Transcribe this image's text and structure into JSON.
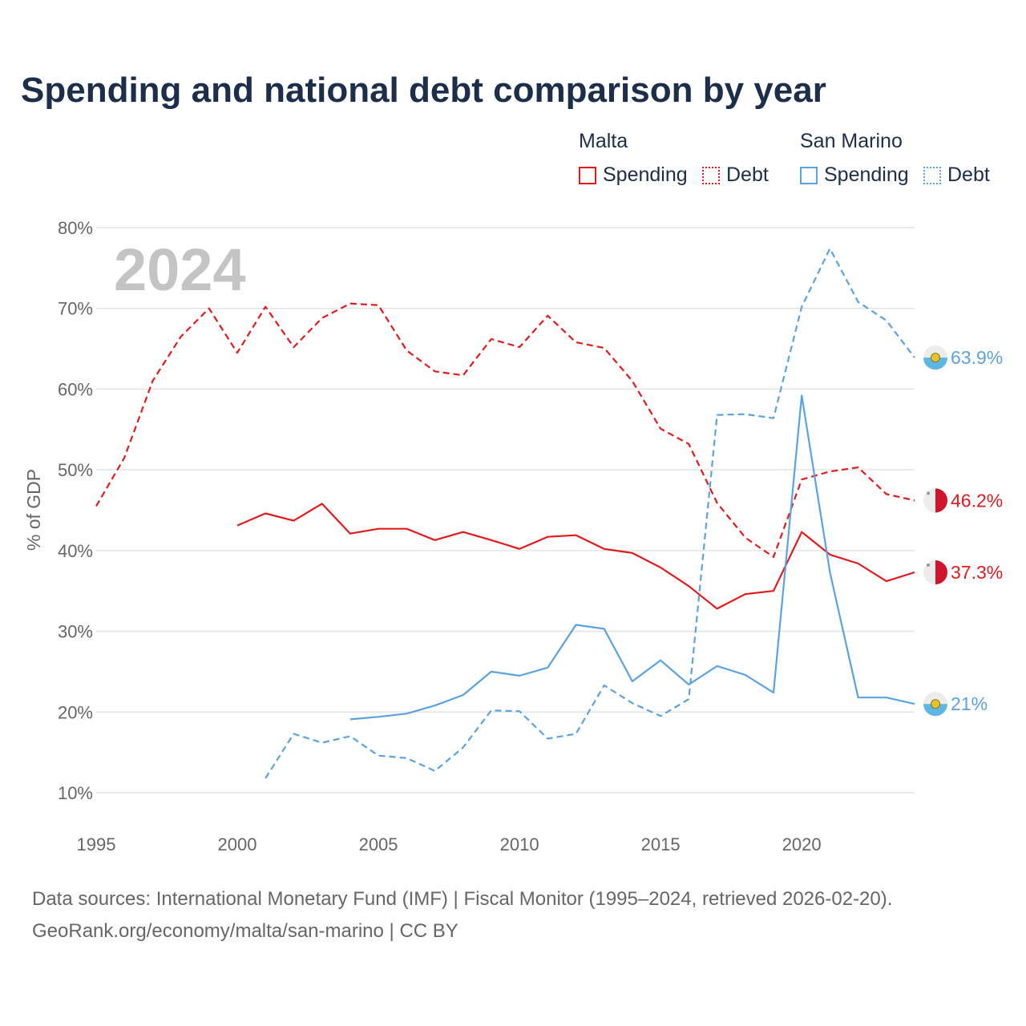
{
  "title": "Spending and national debt comparison by year",
  "legend": {
    "malta_title": "Malta",
    "san_marino_title": "San Marino",
    "spending_label": "Spending",
    "debt_label": "Debt"
  },
  "year_watermark": "2024",
  "footer": {
    "line1": "Data sources: International Monetary Fund (IMF) | Fiscal Monitor (1995–2024, retrieved 2026-02-20).",
    "line2": "GeoRank.org/economy/malta/san-marino | CC BY"
  },
  "colors": {
    "malta": "#e31a1c",
    "san_marino": "#5ba3e0"
  },
  "chart_data": {
    "type": "line",
    "ylabel": "% of GDP",
    "xlabel": "",
    "xlim": [
      1995,
      2024
    ],
    "ylim": [
      10,
      80
    ],
    "x_ticks": [
      1995,
      2000,
      2005,
      2010,
      2015,
      2020
    ],
    "y_ticks": [
      10,
      20,
      30,
      40,
      50,
      60,
      70,
      80
    ],
    "y_tick_labels": [
      "10%",
      "20%",
      "30%",
      "40%",
      "50%",
      "60%",
      "70%",
      "80%"
    ],
    "series": [
      {
        "name": "Malta Debt",
        "country": "Malta",
        "style": "dashed",
        "color": "#e31a1c",
        "x": [
          1995,
          1996,
          1997,
          1998,
          1999,
          2000,
          2001,
          2002,
          2003,
          2004,
          2005,
          2006,
          2007,
          2008,
          2009,
          2010,
          2011,
          2012,
          2013,
          2014,
          2015,
          2016,
          2017,
          2018,
          2019,
          2020,
          2021,
          2022,
          2023,
          2024
        ],
        "values": [
          45.5,
          51.5,
          61,
          66.5,
          70,
          64.5,
          70.2,
          65.2,
          68.8,
          70.6,
          70.4,
          64.8,
          62.2,
          61.7,
          66.2,
          65.2,
          69.1,
          65.8,
          65.1,
          61,
          55.1,
          53.2,
          45.9,
          41.6,
          39.2,
          48.8,
          49.8,
          50.3,
          47,
          46.2
        ],
        "end_label": "46.2%"
      },
      {
        "name": "Malta Spending",
        "country": "Malta",
        "style": "solid",
        "color": "#e31a1c",
        "x": [
          2000,
          2001,
          2002,
          2003,
          2004,
          2005,
          2006,
          2007,
          2008,
          2009,
          2010,
          2011,
          2012,
          2013,
          2014,
          2015,
          2016,
          2017,
          2018,
          2019,
          2020,
          2021,
          2022,
          2023,
          2024
        ],
        "values": [
          43.1,
          44.6,
          43.7,
          45.8,
          42.1,
          42.7,
          42.7,
          41.3,
          42.3,
          41.3,
          40.2,
          41.7,
          41.9,
          40.2,
          39.7,
          37.9,
          35.6,
          32.8,
          34.6,
          35,
          42.3,
          39.5,
          38.4,
          36.2,
          37.3
        ],
        "end_label": "37.3%"
      },
      {
        "name": "San Marino Debt",
        "country": "San Marino",
        "style": "dashed",
        "color": "#5ba3e0",
        "x": [
          2001,
          2002,
          2003,
          2004,
          2005,
          2006,
          2007,
          2008,
          2009,
          2010,
          2011,
          2012,
          2013,
          2014,
          2015,
          2016,
          2017,
          2018,
          2019,
          2020,
          2021,
          2022,
          2023,
          2024
        ],
        "values": [
          11.8,
          17.3,
          16.2,
          17,
          14.6,
          14.3,
          12.7,
          15.6,
          20.2,
          20.1,
          16.7,
          17.3,
          23.3,
          21.1,
          19.5,
          21.6,
          56.8,
          56.9,
          56.4,
          70.2,
          77.4,
          70.8,
          68.5,
          63.9
        ],
        "end_label": "63.9%"
      },
      {
        "name": "San Marino Spending",
        "country": "San Marino",
        "style": "solid",
        "color": "#5ba3e0",
        "x": [
          2004,
          2005,
          2006,
          2007,
          2008,
          2009,
          2010,
          2011,
          2012,
          2013,
          2014,
          2015,
          2016,
          2017,
          2018,
          2019,
          2020,
          2021,
          2022,
          2023,
          2024
        ],
        "values": [
          19.1,
          19.4,
          19.8,
          20.8,
          22.1,
          25,
          24.5,
          25.5,
          30.8,
          30.3,
          23.8,
          26.4,
          23.4,
          25.7,
          24.6,
          22.4,
          59.2,
          37.3,
          21.8,
          21.8,
          21
        ],
        "end_label": "21%"
      }
    ]
  }
}
